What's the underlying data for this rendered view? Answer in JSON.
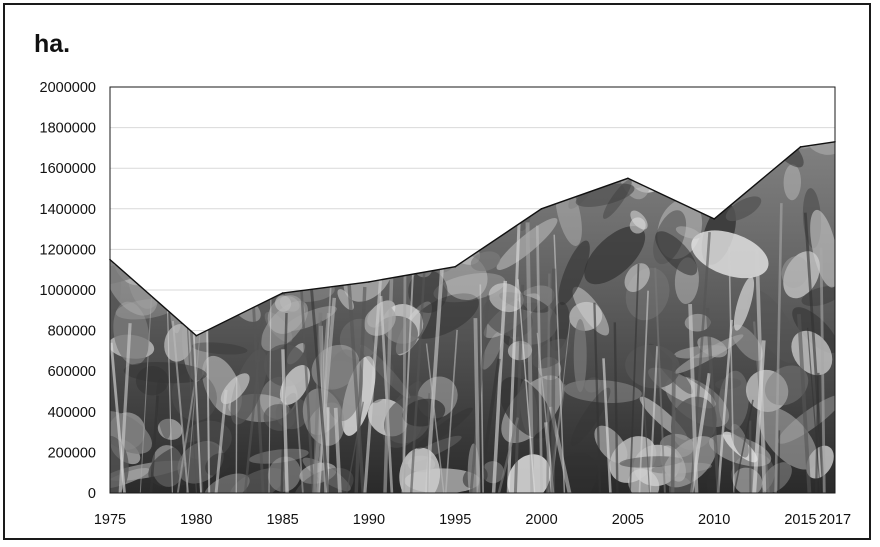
{
  "chart_data": {
    "type": "area",
    "title": "",
    "unit_label": "ha.",
    "xlabel": "",
    "ylabel": "",
    "x": [
      1975,
      1980,
      1985,
      1990,
      1995,
      2000,
      2005,
      2010,
      2015,
      2017
    ],
    "x_tick_labels": [
      "1975",
      "1980",
      "1985",
      "1990",
      "1995",
      "2000",
      "2005",
      "2010",
      "2015",
      "2017"
    ],
    "series": [
      {
        "values": [
          1150000,
          775000,
          985000,
          1040000,
          1115000,
          1400000,
          1550000,
          1350000,
          1705000,
          1730000
        ]
      }
    ],
    "ylim": [
      0,
      2000000
    ],
    "y_ticks": [
      0,
      200000,
      400000,
      600000,
      800000,
      1000000,
      1200000,
      1400000,
      1600000,
      1800000,
      2000000
    ],
    "y_tick_labels": [
      "0",
      "200000",
      "400000",
      "600000",
      "800000",
      "1000000",
      "1200000",
      "1400000",
      "1600000",
      "1800000",
      "2000000"
    ],
    "grid": true,
    "legend": "none",
    "fill": "photographic texture of taro plants (grayscale)",
    "colors": {
      "line": "#111111",
      "grid": "#d9d9d9",
      "axis": "#1a1a1a",
      "fill_dark": "#2b2b2b",
      "fill_light": "#bdbdbd"
    }
  }
}
